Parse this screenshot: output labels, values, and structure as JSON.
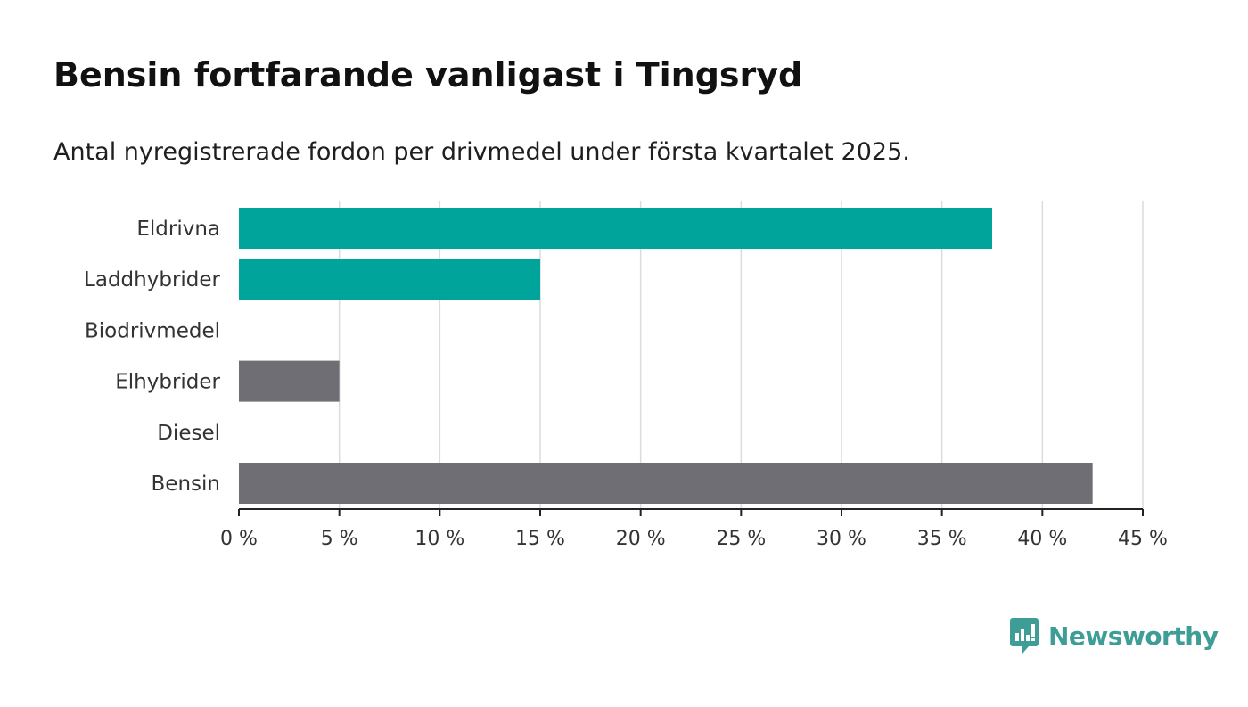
{
  "header": {
    "title": "Bensin fortfarande vanligast i Tingsryd",
    "subtitle": "Antal nyregistrerade fordon per drivmedel under första kvartalet 2025."
  },
  "brand": {
    "name": "Newsworthy",
    "icon": "newsworthy-logo-icon",
    "color": "#3e9e97"
  },
  "chart_data": {
    "type": "bar",
    "orientation": "horizontal",
    "title": "",
    "xlabel": "",
    "ylabel": "",
    "categories": [
      "Eldrivna",
      "Laddhybrider",
      "Biodrivmedel",
      "Elhybrider",
      "Diesel",
      "Bensin"
    ],
    "values": [
      37.5,
      15,
      0,
      5,
      0,
      42.5
    ],
    "bar_colors": [
      "#00a49a",
      "#00a49a",
      "#00a49a",
      "#6f6e75",
      "#6f6e75",
      "#6f6e75"
    ],
    "xlim": [
      0,
      45
    ],
    "x_ticks": [
      0,
      5,
      10,
      15,
      20,
      25,
      30,
      35,
      40,
      45
    ],
    "x_tick_labels": [
      "0 %",
      "5 %",
      "10 %",
      "15 %",
      "20 %",
      "25 %",
      "30 %",
      "35 %",
      "40 %",
      "45 %"
    ],
    "grid": true,
    "legend": "none"
  }
}
